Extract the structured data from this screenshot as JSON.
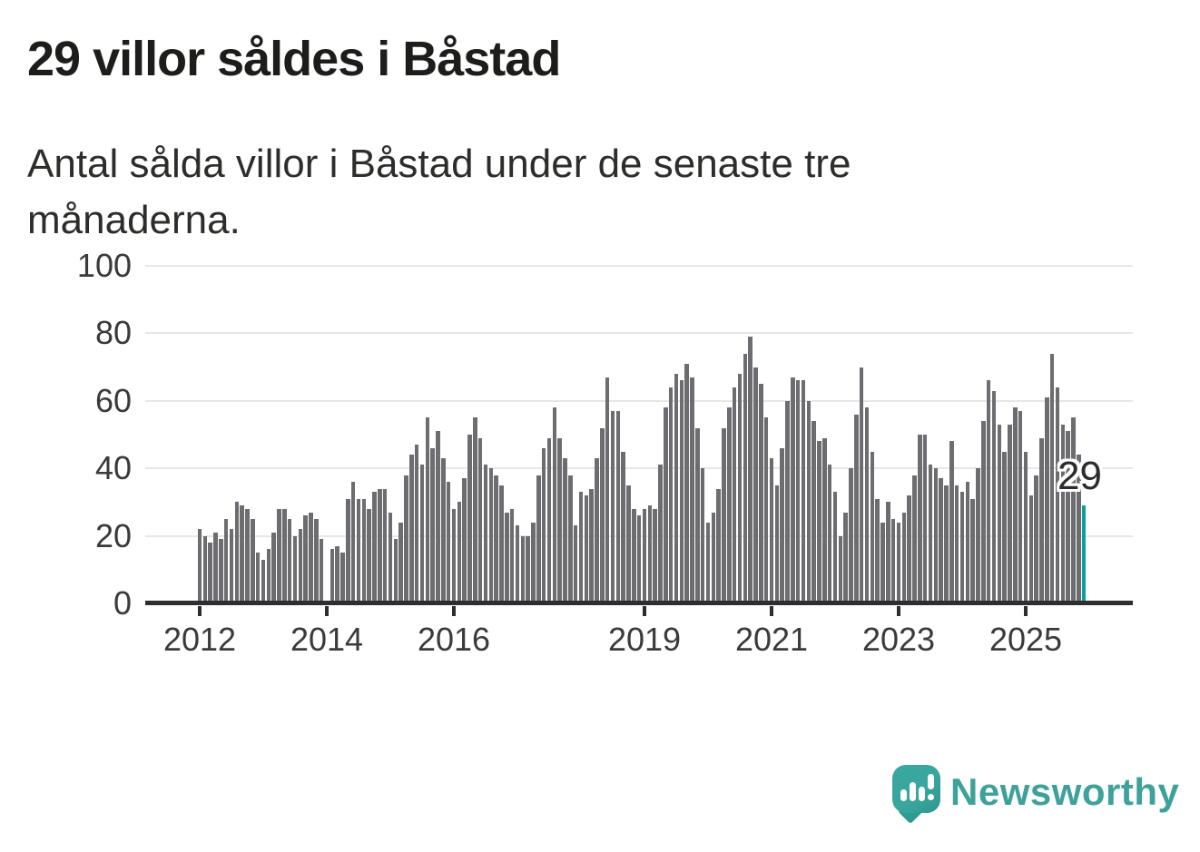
{
  "header": {
    "title": "29 villor såldes i Båstad",
    "subtitle": "Antal sålda villor i Båstad under de senaste tre månaderna."
  },
  "chart_data": {
    "type": "bar",
    "title": "29 villor såldes i Båstad",
    "subtitle": "Antal sålda villor i Båstad under de senaste tre månaderna.",
    "x_unit": "month",
    "x_range": [
      "2012-01",
      "2025-12"
    ],
    "ylim": [
      0,
      100
    ],
    "yticks": [
      0,
      20,
      40,
      60,
      80,
      100
    ],
    "grid": "horizontal",
    "legend": "none",
    "xticks": [
      {
        "label": "2012",
        "month_index": 0
      },
      {
        "label": "2014",
        "month_index": 24
      },
      {
        "label": "2016",
        "month_index": 48
      },
      {
        "label": "2019",
        "month_index": 84
      },
      {
        "label": "2021",
        "month_index": 108
      },
      {
        "label": "2023",
        "month_index": 132
      },
      {
        "label": "2025",
        "month_index": 156
      }
    ],
    "series": [
      {
        "year": 2012,
        "monthly_values": [
          22,
          20,
          18,
          21,
          19,
          25,
          22,
          30,
          29,
          28,
          25,
          15
        ]
      },
      {
        "year": 2013,
        "monthly_values": [
          13,
          16,
          21,
          28,
          28,
          25,
          20,
          22,
          26,
          27,
          25,
          19
        ]
      },
      {
        "year": 2014,
        "monthly_values": [
          0,
          16,
          17,
          15,
          31,
          36,
          31,
          31,
          28,
          33,
          34,
          34
        ]
      },
      {
        "year": 2015,
        "monthly_values": [
          27,
          19,
          24,
          38,
          44,
          47,
          41,
          55,
          46,
          51,
          43,
          36
        ]
      },
      {
        "year": 2016,
        "monthly_values": [
          28,
          30,
          37,
          50,
          55,
          49,
          41,
          40,
          38,
          35,
          27,
          28
        ]
      },
      {
        "year": 2017,
        "monthly_values": [
          23,
          20,
          20,
          24,
          38,
          46,
          49,
          58,
          49,
          43,
          38,
          23
        ]
      },
      {
        "year": 2018,
        "monthly_values": [
          33,
          32,
          34,
          43,
          52,
          67,
          57,
          57,
          45,
          35,
          28,
          26
        ]
      },
      {
        "year": 2019,
        "monthly_values": [
          28,
          29,
          28,
          41,
          58,
          64,
          68,
          66,
          71,
          67,
          52,
          40
        ]
      },
      {
        "year": 2020,
        "monthly_values": [
          24,
          27,
          34,
          52,
          58,
          64,
          68,
          74,
          79,
          70,
          65,
          55
        ]
      },
      {
        "year": 2021,
        "monthly_values": [
          43,
          35,
          46,
          60,
          67,
          66,
          66,
          60,
          54,
          48,
          49,
          41
        ]
      },
      {
        "year": 2022,
        "monthly_values": [
          33,
          20,
          27,
          40,
          56,
          70,
          58,
          45,
          31,
          24,
          30,
          25
        ]
      },
      {
        "year": 2023,
        "monthly_values": [
          24,
          27,
          32,
          38,
          50,
          50,
          41,
          40,
          37,
          35,
          48,
          35
        ]
      },
      {
        "year": 2024,
        "monthly_values": [
          33,
          36,
          31,
          40,
          54,
          66,
          63,
          53,
          45,
          53,
          58,
          57
        ]
      },
      {
        "year": 2025,
        "monthly_values": [
          45,
          32,
          38,
          49,
          61,
          74,
          64,
          53,
          51,
          55,
          44,
          29
        ]
      }
    ],
    "highlight": {
      "position": "last",
      "value": 29,
      "label": "29"
    },
    "annotation": {
      "label": "29"
    }
  },
  "colors": {
    "bar": "#6d6d71",
    "highlight": "#0d9ea0",
    "grid": "#e7e7e7",
    "axis": "#2e2e31",
    "axis_text": "#3a3a3a",
    "title_text": "#1d1d1b",
    "logo_teal": "#3ea19a"
  },
  "footer": {
    "logo_text": "Newsworthy"
  }
}
